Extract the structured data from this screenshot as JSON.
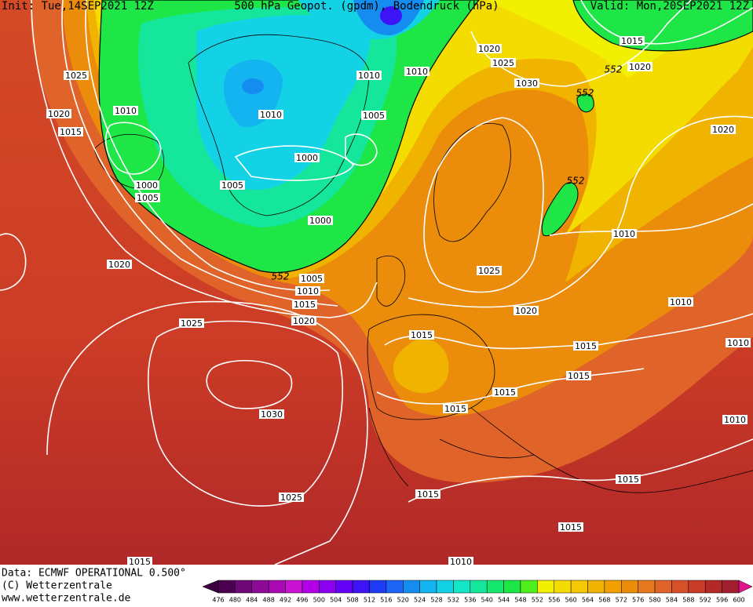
{
  "header": {
    "init": "Init: Tue,14SEP2021 12Z",
    "title": "500 hPa Geopot. (gpdm), Bodendruck (hPa)",
    "valid": "Valid: Mon,20SEP2021 12Z"
  },
  "isobar_labels": [
    "1025",
    "1020",
    "1015",
    "1010",
    "1000",
    "1005",
    "1020",
    "1025",
    "1030",
    "1025",
    "1015",
    "1010",
    "1015",
    "1015",
    "1015",
    "1015",
    "1015",
    "1015",
    "1015",
    "1015",
    "1020",
    "1025",
    "1010",
    "1010",
    "1010",
    "1010",
    "1020",
    "1020",
    "1015",
    "1020",
    "1025",
    "1030",
    "1010",
    "1010",
    "1005",
    "1010",
    "1000",
    "1005",
    "1000",
    "1005",
    "1010",
    "1015",
    "1020"
  ],
  "height_labels": [
    "552",
    "552",
    "552",
    "552"
  ],
  "footer": {
    "data": "Data: ECMWF OPERATIONAL 0.500°",
    "copyright": "(C) Wetterzentrale",
    "url": "www.wetterzentrale.de"
  },
  "colorbar": {
    "ticks": [
      476,
      480,
      484,
      488,
      492,
      496,
      500,
      504,
      508,
      512,
      516,
      520,
      524,
      528,
      532,
      536,
      540,
      544,
      548,
      552,
      556,
      560,
      564,
      568,
      572,
      576,
      580,
      584,
      588,
      592,
      596,
      600
    ],
    "colors": [
      "#3c0040",
      "#4b0050",
      "#6e0a78",
      "#8c0a96",
      "#aa0ab4",
      "#c814d2",
      "#b400e6",
      "#8c00f0",
      "#6400f5",
      "#3c14f5",
      "#1e3cf5",
      "#1e64f5",
      "#148cf0",
      "#14b4f0",
      "#14d2e6",
      "#14e6c8",
      "#14e69b",
      "#14e66e",
      "#1ee646",
      "#50f01e",
      "#f0f000",
      "#f5dc00",
      "#f5c800",
      "#f0b400",
      "#f0a000",
      "#eb8c0a",
      "#e6781e",
      "#e0642a",
      "#d75028",
      "#c83c28",
      "#b42828",
      "#a01e2d",
      "#e0148c"
    ]
  }
}
